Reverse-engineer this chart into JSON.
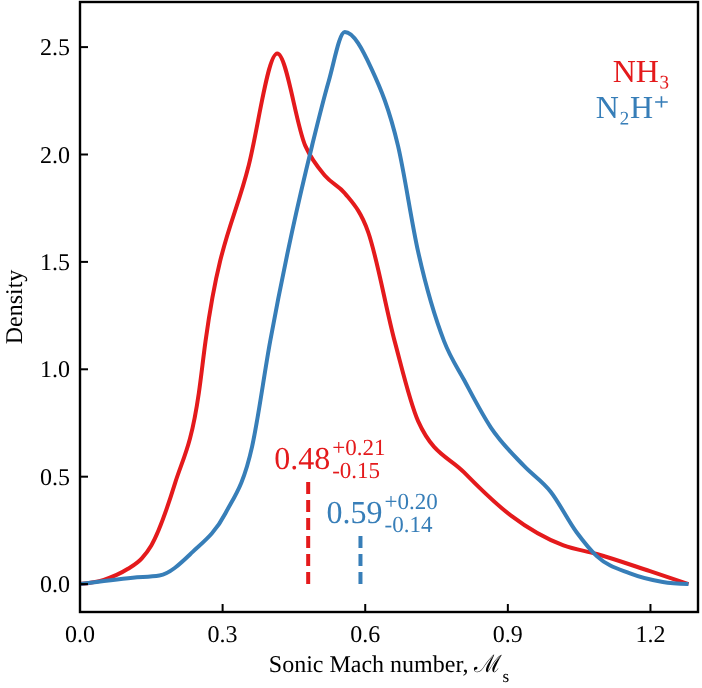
{
  "chart_data": {
    "type": "line",
    "xlabel": "Sonic Mach number, ℳ$_{s}$",
    "ylabel": "Density",
    "xlim": [
      0,
      1.3
    ],
    "ylim": [
      -0.13,
      2.71
    ],
    "xticks": [
      {
        "value": 0,
        "label": "0.0"
      },
      {
        "value": 0.3,
        "label": "0.3"
      },
      {
        "value": 0.6,
        "label": "0.6"
      },
      {
        "value": 0.9,
        "label": "0.9"
      },
      {
        "value": 1.2,
        "label": "1.2"
      }
    ],
    "yticks": [
      {
        "value": 0,
        "label": "0.0"
      },
      {
        "value": 0.5,
        "label": "0.5"
      },
      {
        "value": 1,
        "label": "1.0"
      },
      {
        "value": 1.5,
        "label": "1.5"
      },
      {
        "value": 2,
        "label": "2.0"
      },
      {
        "value": 2.5,
        "label": "2.5"
      }
    ],
    "legend": "top right",
    "grid": false,
    "marker": "none",
    "series": [
      {
        "name": "NH₃",
        "color": "#e41a1c",
        "line_style": "solid",
        "x": [
          0,
          0.05,
          0.1,
          0.13,
          0.15,
          0.2,
          0.25,
          0.264,
          0.355,
          0.415,
          0.474,
          0.516,
          0.557,
          0.606,
          0.662,
          0.711,
          0.808,
          0.906,
          1.017,
          1.087,
          1.199,
          1.28
        ],
        "values": [
          0,
          0.02,
          0.07,
          0.12,
          0.18,
          0.47,
          0.89,
          1.13,
          1.95,
          2.47,
          2.04,
          1.9,
          1.82,
          1.64,
          1.13,
          0.76,
          0.52,
          0.32,
          0.18,
          0.14,
          0.06,
          0
        ]
      },
      {
        "name": "N₂H⁺",
        "color": "#377eb8",
        "line_style": "solid",
        "x": [
          0,
          0.111,
          0.167,
          0.237,
          0.306,
          0.362,
          0.4,
          0.446,
          0.488,
          0.523,
          0.557,
          0.613,
          0.669,
          0.711,
          0.766,
          0.808,
          0.864,
          0.934,
          0.99,
          1.045,
          1.087,
          1.157,
          1.226,
          1.28
        ],
        "values": [
          0,
          0.03,
          0.04,
          0.15,
          0.33,
          0.64,
          1.13,
          1.64,
          2.04,
          2.34,
          2.57,
          2.4,
          2.04,
          1.55,
          1.13,
          0.95,
          0.73,
          0.55,
          0.43,
          0.24,
          0.13,
          0.05,
          0.01,
          0
        ]
      },
      {
        "color": "#e41a1c",
        "line_style": "dashed",
        "x": [
          0.48,
          0.48
        ],
        "values": [
          0,
          0.49
        ]
      },
      {
        "color": "#377eb8",
        "line_style": "dashed",
        "x": [
          0.59,
          0.59
        ],
        "values": [
          0,
          0.24
        ]
      }
    ],
    "annotations": [
      {
        "text": "0.48$^{+0.21}$$_{-0.15}$",
        "x": 0.48,
        "y": 0.49
      },
      {
        "text": "0.59$^{+0.20}$$_{-0.14}$",
        "x": 0.59,
        "y": 0.24
      }
    ]
  }
}
